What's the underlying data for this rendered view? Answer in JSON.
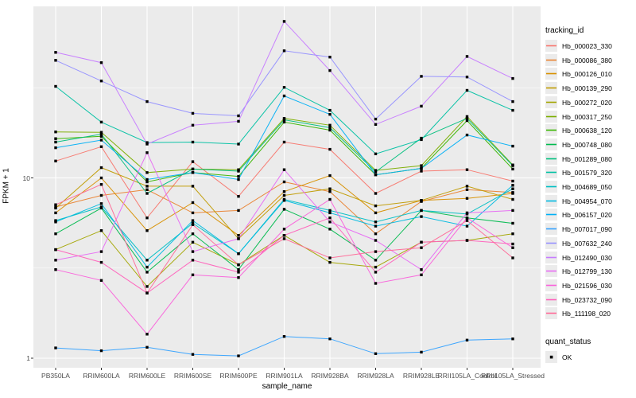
{
  "figure": {
    "background": "#FFFFFF",
    "panel_background": "#EBEBEB",
    "grid_color": "#FFFFFF",
    "axis_text_color": "#4D4D4D",
    "axis_title_color": "#000000",
    "point_color": "#000000"
  },
  "x_axis": {
    "title": "sample_name"
  },
  "y_axis": {
    "title": "FPKM + 1",
    "tick_labels": [
      "1",
      "10"
    ],
    "tick_values": [
      1,
      10
    ]
  },
  "legend": {
    "tracking_title": "tracking_id",
    "quant_title": "quant_status",
    "quant_items": [
      {
        "label": "OK",
        "shape": "filled-square",
        "color": "#000000"
      }
    ]
  },
  "chart_data": {
    "type": "line",
    "title": "",
    "xlabel": "sample_name",
    "ylabel": "FPKM + 1",
    "y_scale": "log10",
    "ylim": [
      1,
      80
    ],
    "y_breaks": [
      1,
      10
    ],
    "y_minor_breaks": [
      3.162,
      31.62
    ],
    "grid": true,
    "legend_position": "right",
    "point_shape": "filled-square",
    "point_color": "#000000",
    "quant_status": "OK",
    "x_categories": [
      "PB350LA",
      "RRIM600LA",
      "RRIM600LE",
      "RRIM600SE",
      "RRIM600PE",
      "RRIM901LA",
      "RRIM928BA",
      "RRIM928LA",
      "RRIM928LE",
      "RRII105LA_Control",
      "RRII105LA_Stressed"
    ],
    "series": [
      {
        "name": "Hb_000023_330",
        "color": "#F8766D",
        "values": [
          12.4,
          14.9,
          6.0,
          12.3,
          7.9,
          15.8,
          14.4,
          8.2,
          10.9,
          11.1,
          9.6
        ]
      },
      {
        "name": "Hb_000086_380",
        "color": "#EA8331",
        "values": [
          6.9,
          8.0,
          8.6,
          6.4,
          6.6,
          9.5,
          8.4,
          4.9,
          7.4,
          8.6,
          8.3
        ]
      },
      {
        "name": "Hb_000126_010",
        "color": "#D89000",
        "values": [
          6.4,
          10.0,
          5.1,
          7.3,
          4.8,
          8.4,
          10.3,
          6.4,
          7.5,
          7.7,
          8.2
        ]
      },
      {
        "name": "Hb_000139_290",
        "color": "#C09B00",
        "values": [
          6.8,
          11.4,
          9.0,
          9.0,
          4.6,
          8.0,
          8.7,
          7.0,
          7.5,
          9.0,
          7.6
        ]
      },
      {
        "name": "Hb_000272_020",
        "color": "#A3A500",
        "values": [
          4.0,
          5.1,
          2.5,
          4.4,
          3.3,
          4.8,
          3.4,
          3.2,
          4.4,
          4.5,
          4.9
        ]
      },
      {
        "name": "Hb_000317_250",
        "color": "#7CAE00",
        "values": [
          18.0,
          17.9,
          10.7,
          11.2,
          11.1,
          21.4,
          19.6,
          11.0,
          11.7,
          21.9,
          11.8
        ]
      },
      {
        "name": "Hb_000638_120",
        "color": "#39B600",
        "values": [
          16.5,
          17.0,
          9.5,
          10.7,
          10.2,
          20.4,
          18.4,
          10.4,
          11.3,
          20.8,
          11.2
        ]
      },
      {
        "name": "Hb_000748_080",
        "color": "#00BB4E",
        "values": [
          4.9,
          6.8,
          3.0,
          4.9,
          3.1,
          6.7,
          5.2,
          3.5,
          6.6,
          6.0,
          5.6
        ]
      },
      {
        "name": "Hb_001289_080",
        "color": "#00BF7D",
        "values": [
          15.8,
          17.5,
          8.2,
          11.2,
          10.9,
          21.0,
          19.0,
          10.8,
          16.6,
          21.4,
          11.7
        ]
      },
      {
        "name": "Hb_001579_320",
        "color": "#00C1A3",
        "values": [
          32.2,
          20.4,
          15.7,
          15.8,
          15.4,
          31.8,
          23.7,
          13.6,
          16.3,
          30.6,
          23.7
        ]
      },
      {
        "name": "Hb_004689_050",
        "color": "#00BFC4",
        "values": [
          5.8,
          6.9,
          3.5,
          5.6,
          3.8,
          7.6,
          6.6,
          5.7,
          6.6,
          6.3,
          8.7
        ]
      },
      {
        "name": "Hb_004954_070",
        "color": "#00BAE0",
        "values": [
          5.7,
          7.2,
          3.2,
          5.8,
          3.8,
          7.5,
          6.4,
          5.4,
          6.1,
          5.4,
          9.1
        ]
      },
      {
        "name": "Hb_006157_020",
        "color": "#00B0F6",
        "values": [
          14.7,
          16.2,
          9.8,
          10.7,
          9.8,
          28.5,
          22.5,
          10.4,
          11.3,
          17.3,
          15.0
        ]
      },
      {
        "name": "Hb_007017_090",
        "color": "#35A2FF",
        "values": [
          1.14,
          1.1,
          1.15,
          1.05,
          1.03,
          1.32,
          1.28,
          1.06,
          1.08,
          1.26,
          1.28
        ]
      },
      {
        "name": "Hb_007632_240",
        "color": "#9590FF",
        "values": [
          44.9,
          34.5,
          26.5,
          22.8,
          22.1,
          50.7,
          46.8,
          21.2,
          36.6,
          36.3,
          26.5
        ]
      },
      {
        "name": "Hb_012490_030",
        "color": "#C77CFF",
        "values": [
          49.7,
          43.6,
          15.4,
          19.6,
          20.6,
          73.8,
          39.4,
          19.8,
          25.0,
          47.2,
          35.6
        ]
      },
      {
        "name": "Hb_012799_130",
        "color": "#E76BF3",
        "values": [
          3.5,
          3.9,
          13.8,
          3.9,
          4.6,
          11.1,
          5.7,
          4.5,
          3.1,
          6.4,
          6.6
        ]
      },
      {
        "name": "Hb_021596_030",
        "color": "#FA62DB",
        "values": [
          3.1,
          2.7,
          1.36,
          2.9,
          2.8,
          5.2,
          7.6,
          2.6,
          2.9,
          6.0,
          4.1
        ]
      },
      {
        "name": "Hb_023732_090",
        "color": "#FF62BC",
        "values": [
          4.0,
          3.4,
          2.3,
          3.5,
          3.0,
          4.8,
          6.0,
          3.0,
          4.4,
          4.5,
          4.3
        ]
      },
      {
        "name": "Hb_111198_020",
        "color": "#FF6A98",
        "values": [
          7.1,
          9.2,
          2.3,
          5.5,
          3.3,
          4.6,
          3.6,
          3.9,
          4.1,
          5.8,
          3.6
        ]
      }
    ]
  }
}
